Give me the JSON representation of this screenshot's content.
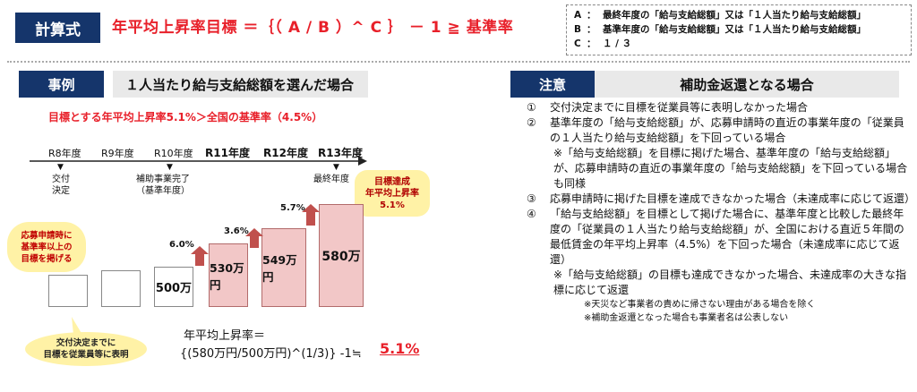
{
  "header": {
    "label": "計算式",
    "formula": "年平均上昇率目標 ＝｛（ A / B ）^ C ｝ － 1 ≧ 基準率",
    "legend": [
      {
        "key": "A",
        "text": "最終年度の「給与支給総額」又は「１人当たり給与支給総額」"
      },
      {
        "key": "B",
        "text": "基準年度の「給与支給総額」又は「１人当たり給与支給総額」"
      },
      {
        "key": "C",
        "text": "１ / ３"
      }
    ]
  },
  "example": {
    "label": "事例",
    "title": "１人当たり給与支給総額を選んだ場合",
    "condition": "目標とする年平均上昇率5.1%＞全国の基準率（4.5%）",
    "years": [
      "R8年度",
      "R9年度",
      "R10年度",
      "R11年度",
      "R12年度",
      "R13年度"
    ],
    "year_notes": {
      "r8": "交付\n決定",
      "r10": "補助事業完了\n（基準年度）",
      "r13": "最終年度"
    },
    "chart_data": {
      "type": "bar",
      "categories": [
        "R8年度",
        "R9年度",
        "R10年度",
        "R11年度",
        "R12年度",
        "R13年度"
      ],
      "values": [
        null,
        null,
        500,
        530,
        549,
        580
      ],
      "value_labels": [
        "",
        "",
        "500万",
        "530万円",
        "549万円",
        "580万"
      ],
      "growth_labels": [
        "",
        "",
        "",
        "6.0%",
        "3.6%",
        "5.7%"
      ]
    },
    "target_bubble": "目標達成\n年平均上昇率\n5.1%",
    "left_bubble": "応募申請時に\n基準率以上の\n目標を掲げる",
    "bottom_bubble": "交付決定までに\n目標を従業員等に表明",
    "calc_line1": "年平均上昇率＝",
    "calc_line2": "{(580万円/500万円)^(1/3)} -1≒",
    "calc_result": "5.1%"
  },
  "notes": {
    "label": "注意",
    "title": "補助金返還となる場合",
    "items": [
      {
        "num": "①",
        "text": "交付決定までに目標を従業員等に表明しなかった場合"
      },
      {
        "num": "②",
        "text": "基準年度の「給与支給総額」が、応募申請時の直近の事業年度の「従業員の１人当たり給与支給総額」を下回っている場合"
      },
      {
        "sub": "※「給与支給総額」を目標に掲げた場合、基準年度の「給与支給総額」が、応募申請時の直近の事業年度の「給与支給総額」を下回っている場合も同様"
      },
      {
        "num": "③",
        "text": "応募申請時に掲げた目標を達成できなかった場合（未達成率に応じて返還）"
      },
      {
        "num": "④",
        "text": "「給与支給総額」を目標として掲げた場合に、基準年度と比較した最終年度の「従業員の１人当たり給与支給総額」が、全国における直近５年間の最低賃金の年平均上昇率（4.5%）を下回った場合（未達成率に応じて返還）"
      },
      {
        "sub": "※「給与支給総額」の目標も達成できなかった場合、未達成率の大きな指標に応じて返還"
      }
    ],
    "small": [
      "※天災など事業者の責めに帰さない理由がある場合を除く",
      "※補助金返還となった場合も事業者名は公表しない"
    ]
  },
  "colors": {
    "navy": "#15356b",
    "red": "#e8202a",
    "pink_bar": "#f2c7c7",
    "arrow": "#c0504d",
    "bubble": "#fff2a6"
  }
}
